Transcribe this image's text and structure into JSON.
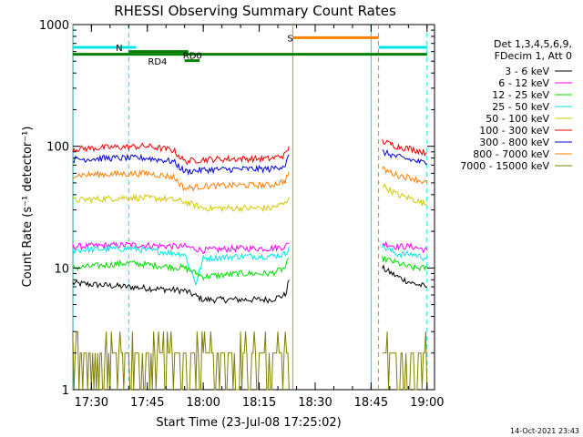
{
  "chart_data": {
    "type": "line",
    "title": "RHESSI Observing Summary Count Rates",
    "xlabel": "Start Time (23-Jul-08 17:25:02)",
    "ylabel": "Count Rate (s⁻¹ detector⁻¹)",
    "yscale": "log",
    "ylim": [
      1,
      1000
    ],
    "x_ticks": [
      "17:30",
      "17:45",
      "18:00",
      "18:15",
      "18:30",
      "18:45",
      "19:00"
    ],
    "y_ticks": [
      "1",
      "10",
      "100",
      "1000"
    ],
    "legend": {
      "placement": "top-right",
      "header_lines": [
        "Det 1,3,4,5,6,9,",
        "FDecim 1, Att 0"
      ],
      "entries": [
        {
          "label": "3 - 6 keV",
          "color": "#000000"
        },
        {
          "label": "6 - 12 keV",
          "color": "#ff00ff"
        },
        {
          "label": "12 - 25 keV",
          "color": "#00dd00"
        },
        {
          "label": "25 - 50 keV",
          "color": "#00e5e5"
        },
        {
          "label": "50 - 100 keV",
          "color": "#d4c800"
        },
        {
          "label": "100 - 300 keV",
          "color": "#ee0000"
        },
        {
          "label": "300 - 800 keV",
          "color": "#0000dd"
        },
        {
          "label": "800 - 7000 keV",
          "color": "#ff7f00"
        },
        {
          "label": "7000 - 15000 keV",
          "color": "#808000"
        }
      ]
    },
    "segments_note": "data gap between about 18:24 and 18:47",
    "series": [
      {
        "name": "3 - 6 keV",
        "segments": [
          {
            "x": [
              "17:25",
              "17:40",
              "17:55",
              "18:00",
              "18:10",
              "18:18",
              "18:22",
              "18:23"
            ],
            "y": [
              7.5,
              7,
              6.5,
              5.5,
              5.5,
              5.5,
              6,
              8
            ]
          },
          {
            "x": [
              "18:48",
              "18:52",
              "18:56",
              "19:00"
            ],
            "y": [
              10,
              8.5,
              7.5,
              7
            ]
          }
        ]
      },
      {
        "name": "6 - 12 keV",
        "segments": [
          {
            "x": [
              "17:25",
              "17:40",
              "17:55",
              "18:00",
              "18:10",
              "18:18",
              "18:22",
              "18:23"
            ],
            "y": [
              15,
              15.5,
              15,
              14,
              14.5,
              14.5,
              15,
              16
            ]
          },
          {
            "x": [
              "18:48",
              "18:52",
              "18:56",
              "19:00"
            ],
            "y": [
              16,
              15,
              15,
              14
            ]
          }
        ]
      },
      {
        "name": "12 - 25 keV",
        "segments": [
          {
            "x": [
              "17:25",
              "17:40",
              "17:55",
              "18:00",
              "18:10",
              "18:18",
              "18:22",
              "18:23"
            ],
            "y": [
              10,
              11,
              10,
              8.5,
              9,
              9,
              10,
              12
            ]
          },
          {
            "x": [
              "18:48",
              "18:52",
              "18:56",
              "19:00"
            ],
            "y": [
              12,
              11,
              10,
              10
            ]
          }
        ]
      },
      {
        "name": "25 - 50 keV",
        "segments": [
          {
            "x": [
              "17:25",
              "17:40",
              "17:55",
              "17:58",
              "18:00",
              "18:10",
              "18:18",
              "18:22",
              "18:23"
            ],
            "y": [
              14,
              14.5,
              13,
              7.5,
              12,
              12.5,
              12.5,
              13,
              15
            ]
          },
          {
            "x": [
              "18:48",
              "18:52",
              "18:56",
              "19:00"
            ],
            "y": [
              15,
              13,
              13,
              12
            ]
          }
        ]
      },
      {
        "name": "50 - 100 keV",
        "segments": [
          {
            "x": [
              "17:25",
              "17:40",
              "17:50",
              "17:55",
              "18:00",
              "18:10",
              "18:18",
              "18:22",
              "18:23"
            ],
            "y": [
              36,
              38,
              37,
              35,
              31,
              31,
              31,
              34,
              38
            ]
          },
          {
            "x": [
              "18:48",
              "18:52",
              "18:56",
              "19:00"
            ],
            "y": [
              48,
              40,
              37,
              33
            ]
          }
        ]
      },
      {
        "name": "100 - 300 keV",
        "segments": [
          {
            "x": [
              "17:25",
              "17:35",
              "17:45",
              "17:52",
              "17:55",
              "18:00",
              "18:10",
              "18:18",
              "18:22",
              "18:23"
            ],
            "y": [
              95,
              98,
              100,
              93,
              75,
              78,
              79,
              79,
              85,
              100
            ]
          },
          {
            "x": [
              "18:48",
              "18:52",
              "18:56",
              "19:00"
            ],
            "y": [
              110,
              100,
              95,
              88
            ]
          }
        ]
      },
      {
        "name": "300 - 800 keV",
        "segments": [
          {
            "x": [
              "17:25",
              "17:35",
              "17:45",
              "17:52",
              "17:55",
              "18:00",
              "18:10",
              "18:18",
              "18:22",
              "18:23"
            ],
            "y": [
              78,
              80,
              80,
              75,
              62,
              64,
              65,
              65,
              70,
              85
            ]
          },
          {
            "x": [
              "18:48",
              "18:52",
              "18:56",
              "19:00"
            ],
            "y": [
              90,
              82,
              77,
              72
            ]
          }
        ]
      },
      {
        "name": "800 - 7000 keV",
        "segments": [
          {
            "x": [
              "17:25",
              "17:35",
              "17:45",
              "17:52",
              "17:55",
              "18:00",
              "18:10",
              "18:18",
              "18:22",
              "18:23"
            ],
            "y": [
              58,
              59,
              60,
              56,
              45,
              47,
              48,
              48,
              52,
              62
            ]
          },
          {
            "x": [
              "18:48",
              "18:52",
              "18:56",
              "19:00"
            ],
            "y": [
              65,
              58,
              55,
              50
            ]
          }
        ]
      },
      {
        "name": "7000 - 15000 keV",
        "segments": [
          {
            "x": [
              "17:25",
              "18:23"
            ],
            "y": [
              1.5,
              1.5
            ]
          },
          {
            "x": [
              "18:48",
              "19:00"
            ],
            "y": [
              1.5,
              1.5
            ]
          }
        ]
      }
    ],
    "annotations": [
      {
        "label": "N",
        "at": "17:38",
        "y": 650
      },
      {
        "label": "S",
        "at": "18:24",
        "y": 780
      },
      {
        "label": "RD0",
        "at": "17:56",
        "y": 560
      },
      {
        "label": "RD4",
        "at": "17:52",
        "y": 500
      }
    ],
    "bars": [
      {
        "name": "N",
        "color": "#00e5e5",
        "x": [
          "17:25",
          "17:42"
        ],
        "y": 650
      },
      {
        "name": "N",
        "color": "#00e5e5",
        "x": [
          "18:47",
          "19:00"
        ],
        "y": 650
      },
      {
        "name": "S",
        "color": "#ff7f00",
        "x": [
          "18:24",
          "18:47"
        ],
        "y": 780
      },
      {
        "name": "RD0",
        "color": "#008000",
        "x": [
          "17:25",
          "19:00"
        ],
        "y": 570
      },
      {
        "name": "RD0",
        "color": "#008000",
        "x": [
          "17:40",
          "17:56"
        ],
        "y": 600
      },
      {
        "name": "RD4",
        "color": "#008000",
        "x": [
          "17:55",
          "17:59"
        ],
        "y": 505
      }
    ],
    "vlines": [
      {
        "x": "17:25",
        "color": "#00e5e5",
        "style": "solid"
      },
      {
        "x": "17:40",
        "color": "#00e5e5",
        "style": "dashed"
      },
      {
        "x": "18:24",
        "color": "#ff7f00",
        "style": "solid"
      },
      {
        "x": "18:45",
        "color": "#00e5e5",
        "style": "solid"
      },
      {
        "x": "18:47",
        "color": "#ff7f00",
        "style": "dashed"
      },
      {
        "x": "19:00",
        "color": "#00e5e5",
        "style": "dashed"
      }
    ],
    "footer_timestamp": "14-Oct-2021 23:43"
  }
}
